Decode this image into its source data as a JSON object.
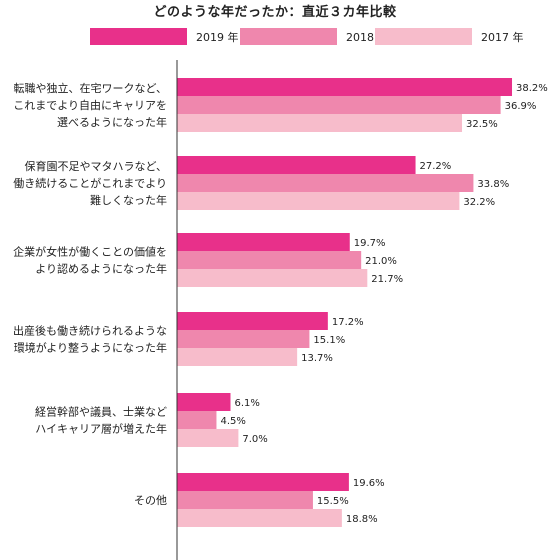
{
  "chart_data": {
    "type": "bar",
    "orientation": "horizontal",
    "title": "どのような年だったか：直近３カ年比較",
    "categories": [
      [
        "転職や独立、在宅ワークなど、",
        "これまでより自由にキャリアを",
        "選べるようになった年"
      ],
      [
        "保育園不足やマタハラなど、",
        "働き続けることがこれまでより",
        "難しくなった年"
      ],
      [
        "企業が女性が働くことの価値を",
        "より認めるようになった年"
      ],
      [
        "出産後も働き続けられるような",
        "環境がより整うようになった年"
      ],
      [
        "経営幹部や議員、士業など",
        "ハイキャリア層が増えた年"
      ],
      [
        "その他"
      ]
    ],
    "series": [
      {
        "name": "2019 年",
        "color": "#e8308a",
        "values": [
          38.2,
          27.2,
          19.7,
          17.2,
          6.1,
          19.6
        ]
      },
      {
        "name": "2018 年",
        "color": "#ef87ad",
        "values": [
          36.9,
          33.8,
          21.0,
          15.1,
          4.5,
          15.5
        ]
      },
      {
        "name": "2017 年",
        "color": "#f7bccb",
        "values": [
          32.5,
          32.2,
          21.7,
          13.7,
          7.0,
          18.8
        ]
      }
    ],
    "value_suffix": "%",
    "legend_position": "top",
    "grid": false
  }
}
